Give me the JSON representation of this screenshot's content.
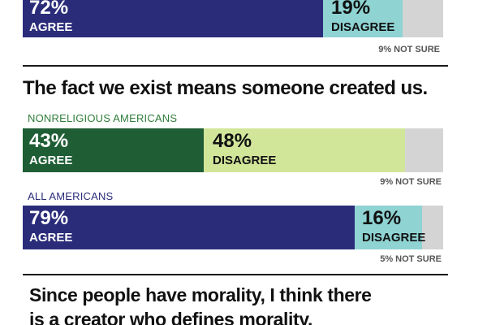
{
  "colors": {
    "dark_blue": "#2a2c7a",
    "light_blue": "#8fd3d3",
    "dark_green": "#1f5e35",
    "light_green": "#d2e69a",
    "gray": "#d4d4d4",
    "blue_label": "#2a2c7a",
    "green_label": "#2f7d3a"
  },
  "top_bar": {
    "agree_pct": "72%",
    "agree_label": "AGREE",
    "disagree_pct": "19%",
    "disagree_label": "DISAGREE",
    "not_sure": "9% NOT SURE"
  },
  "section2": {
    "question": "The fact we exist means someone created us.",
    "groups": [
      {
        "label": "NONRELIGIOUS AMERICANS",
        "agree_pct": "43%",
        "agree_label": "AGREE",
        "disagree_pct": "48%",
        "disagree_label": "DISAGREE",
        "not_sure": "9% NOT SURE"
      },
      {
        "label": "ALL AMERICANS",
        "agree_pct": "79%",
        "agree_label": "AGREE",
        "disagree_pct": "16%",
        "disagree_label": "DISAGREE",
        "not_sure": "5% NOT SURE"
      }
    ]
  },
  "section3": {
    "question_line1": "Since people have morality, I think there",
    "question_line2": "is a creator who defines morality."
  },
  "chart_data": [
    {
      "type": "bar",
      "categories": [
        "AGREE",
        "DISAGREE",
        "NOT SURE"
      ],
      "values": [
        72,
        19,
        9
      ]
    },
    {
      "type": "bar",
      "title": "The fact we exist means someone created us.",
      "categories": [
        "AGREE",
        "DISAGREE",
        "NOT SURE"
      ],
      "series": [
        {
          "name": "NONRELIGIOUS AMERICANS",
          "values": [
            43,
            48,
            9
          ]
        },
        {
          "name": "ALL AMERICANS",
          "values": [
            79,
            16,
            5
          ]
        }
      ]
    }
  ]
}
